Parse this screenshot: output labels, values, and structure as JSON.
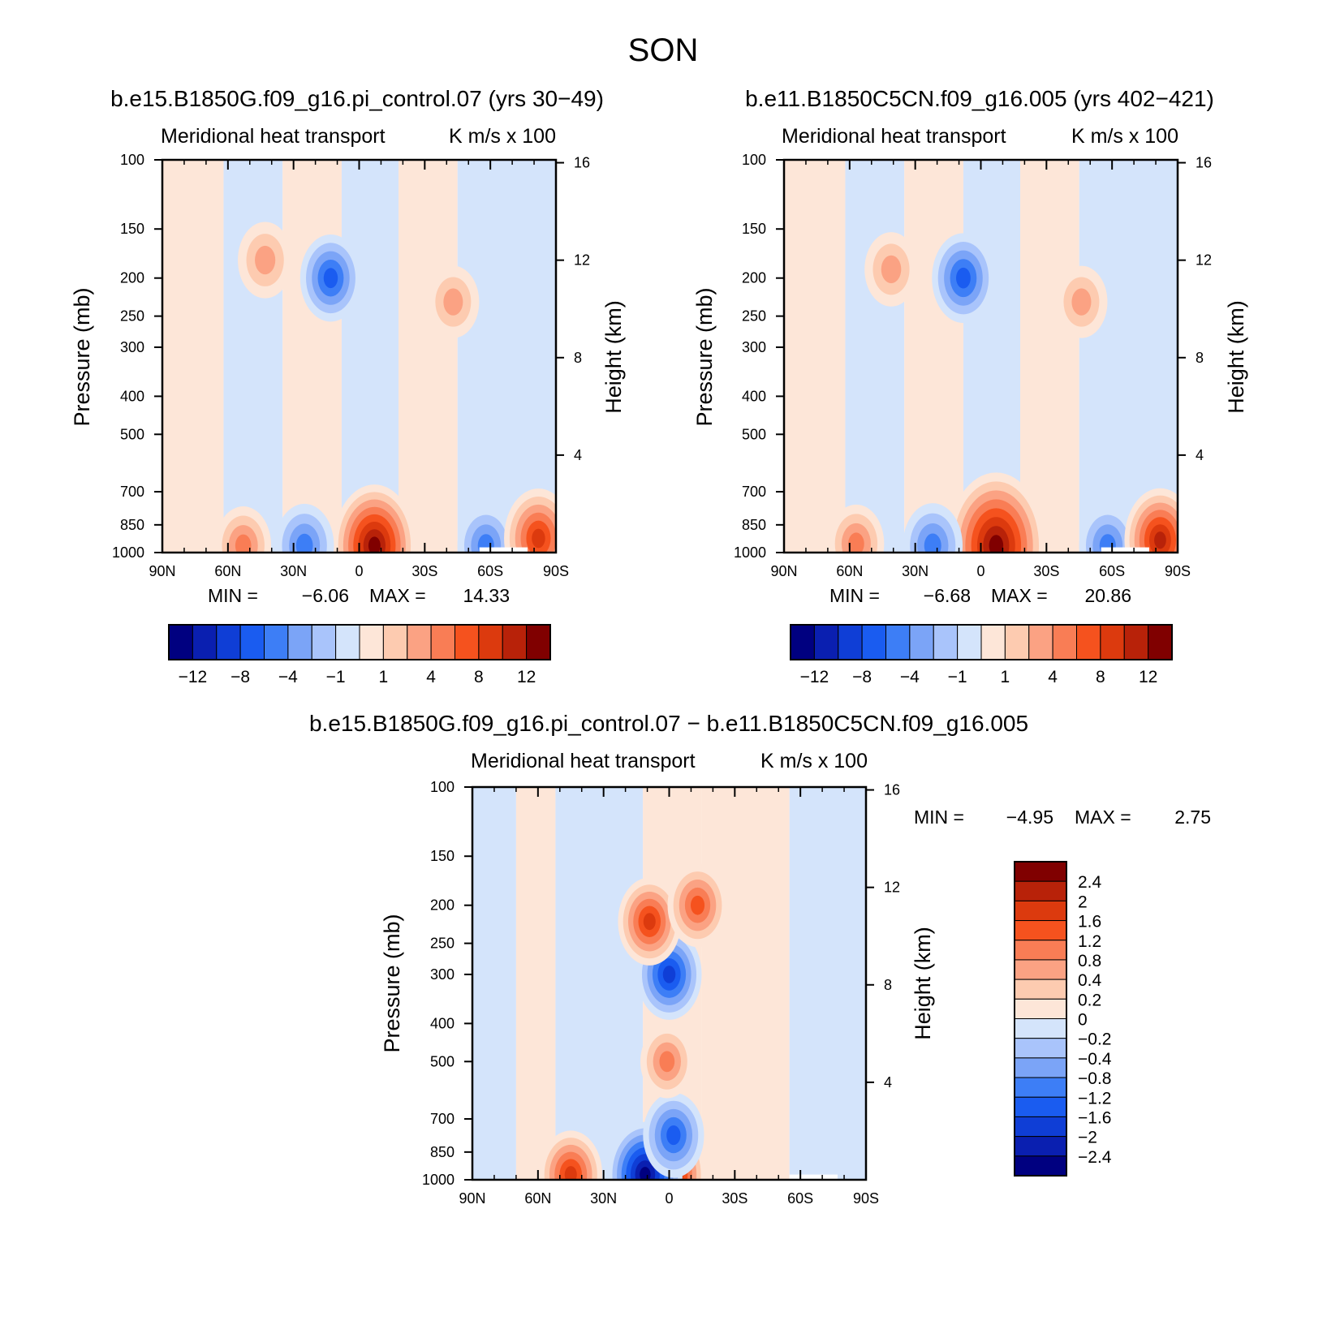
{
  "figure": {
    "title": "SON"
  },
  "palette": {
    "main_colors": [
      "#000080",
      "#0a1fb0",
      "#0f3ed6",
      "#1a5cf0",
      "#3d7ef6",
      "#7ba4f7",
      "#a9c4fb",
      "#d4e4fb",
      "#fde6d8",
      "#fdcbb0",
      "#fba283",
      "#f97d55",
      "#f5521e",
      "#dc3a0e",
      "#b82209",
      "#800000"
    ],
    "main_labels": [
      "-12",
      "-8",
      "-4",
      "-1",
      "1",
      "4",
      "8",
      "12"
    ],
    "diff_colors": [
      "#000080",
      "#0a1fb0",
      "#0f3ed6",
      "#1a5cf0",
      "#3d7ef6",
      "#7ba4f7",
      "#a9c4fb",
      "#d4e4fb",
      "#fde6d8",
      "#fdcbb0",
      "#fba283",
      "#f97d55",
      "#f5521e",
      "#dc3a0e",
      "#b82209",
      "#800000"
    ],
    "diff_labels": [
      "2.4",
      "2",
      "1.6",
      "1.2",
      "0.8",
      "0.4",
      "0.2",
      "0",
      "−0.2",
      "−0.4",
      "−0.8",
      "−1.2",
      "−1.6",
      "−2",
      "−2.4"
    ]
  },
  "chart_data": [
    {
      "type": "heatmap",
      "id": "panel1",
      "title": "b.e15.B1850G.f09_g16.pi_control.07 (yrs 30−49)",
      "subtitle_left": "Meridional heat transport",
      "subtitle_right": "K m/s x 100",
      "xlabel": "",
      "ylabel": "Pressure (mb)",
      "ylabel_right": "Height (km)",
      "x_ticks": [
        "90N",
        "60N",
        "30N",
        "0",
        "30S",
        "60S",
        "90S"
      ],
      "y_ticks": [
        100,
        150,
        200,
        250,
        300,
        400,
        500,
        700,
        850,
        1000
      ],
      "y_right_ticks": [
        16,
        12,
        8,
        4
      ],
      "min_label": "MIN =",
      "min_value": "−6.06",
      "max_label": "MAX =",
      "max_value": "14.33",
      "features": [
        {
          "lat": 13,
          "p": 200,
          "value": -6.06
        },
        {
          "lat": -7,
          "p": 960,
          "value": 14.33
        },
        {
          "lat": 25,
          "p": 960,
          "value": -5.2
        },
        {
          "lat": 53,
          "p": 960,
          "value": 4.0
        },
        {
          "lat": 43,
          "p": 180,
          "value": 3.5
        },
        {
          "lat": -43,
          "p": 230,
          "value": 2.5
        },
        {
          "lat": -58,
          "p": 960,
          "value": -4.5
        },
        {
          "lat": -82,
          "p": 920,
          "value": 9.0
        }
      ]
    },
    {
      "type": "heatmap",
      "id": "panel2",
      "title": "b.e11.B1850C5CN.f09_g16.005 (yrs 402−421)",
      "subtitle_left": "Meridional heat transport",
      "subtitle_right": "K m/s x 100",
      "xlabel": "",
      "ylabel": "Pressure (mb)",
      "ylabel_right": "Height (km)",
      "x_ticks": [
        "90N",
        "60N",
        "30N",
        "0",
        "30S",
        "60S",
        "90S"
      ],
      "y_ticks": [
        100,
        150,
        200,
        250,
        300,
        400,
        500,
        700,
        850,
        1000
      ],
      "y_right_ticks": [
        16,
        12,
        8,
        4
      ],
      "min_label": "MIN =",
      "min_value": "−6.68",
      "max_label": "MAX =",
      "max_value": "20.86",
      "features": [
        {
          "lat": 8,
          "p": 200,
          "value": -6.68
        },
        {
          "lat": -7,
          "p": 960,
          "value": 20.86
        },
        {
          "lat": 22,
          "p": 960,
          "value": -5.5
        },
        {
          "lat": 57,
          "p": 950,
          "value": 4.0
        },
        {
          "lat": 41,
          "p": 190,
          "value": 3.0
        },
        {
          "lat": -46,
          "p": 230,
          "value": 2.5
        },
        {
          "lat": -58,
          "p": 960,
          "value": -4.5
        },
        {
          "lat": -82,
          "p": 930,
          "value": 10.0
        }
      ]
    },
    {
      "type": "heatmap",
      "id": "panel3",
      "title": "b.e15.B1850G.f09_g16.pi_control.07 − b.e11.B1850C5CN.f09_g16.005",
      "subtitle_left": "Meridional heat transport",
      "subtitle_right": "K m/s x 100",
      "xlabel": "",
      "ylabel": "Pressure (mb)",
      "ylabel_right": "Height (km)",
      "x_ticks": [
        "90N",
        "60N",
        "30N",
        "0",
        "30S",
        "60S",
        "90S"
      ],
      "y_ticks": [
        100,
        150,
        200,
        250,
        300,
        400,
        500,
        700,
        850,
        1000
      ],
      "y_right_ticks": [
        16,
        12,
        8,
        4
      ],
      "min_label": "MIN =",
      "min_value": "−4.95",
      "max_label": "MAX =",
      "max_value": "2.75",
      "features": [
        {
          "lat": 0,
          "p": 300,
          "value": -2.0
        },
        {
          "lat": 9,
          "p": 220,
          "value": 1.8
        },
        {
          "lat": -13,
          "p": 200,
          "value": 1.5
        },
        {
          "lat": 0,
          "p": 970,
          "value": 2.75
        },
        {
          "lat": 11,
          "p": 970,
          "value": -4.95
        },
        {
          "lat": -2,
          "p": 770,
          "value": -1.6
        },
        {
          "lat": 1,
          "p": 500,
          "value": 0.8
        },
        {
          "lat": 45,
          "p": 970,
          "value": 1.8
        }
      ]
    }
  ]
}
